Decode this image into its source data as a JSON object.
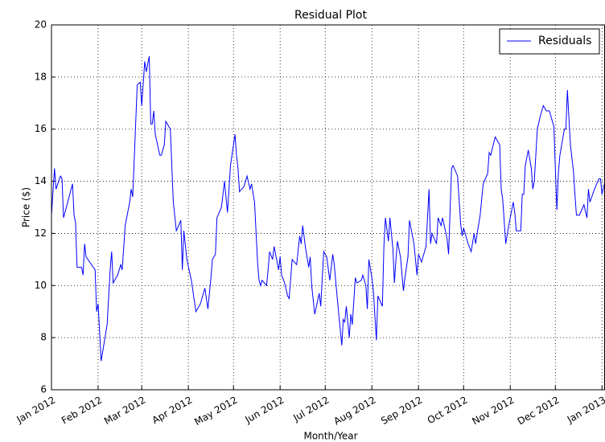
{
  "chart_data": {
    "type": "line",
    "title": "Residual Plot",
    "x_label": "Month/Year",
    "y_label": "Price ($)",
    "x": [
      0,
      2,
      3,
      6,
      7,
      8,
      14,
      15,
      16,
      17,
      20,
      21,
      22,
      23,
      29,
      30,
      31,
      33,
      35,
      37,
      39,
      40,
      41,
      44,
      46,
      47,
      49,
      52,
      53,
      54,
      57,
      59,
      60,
      62,
      63,
      65,
      66,
      67,
      68,
      69,
      72,
      73,
      75,
      76,
      79,
      80,
      81,
      83,
      86,
      87,
      88,
      90,
      93,
      96,
      99,
      102,
      104,
      106,
      107,
      109,
      110,
      113,
      115,
      117,
      119,
      122,
      123,
      124,
      125,
      128,
      130,
      132,
      133,
      135,
      137,
      138,
      139,
      140,
      143,
      144,
      145,
      147,
      148,
      151,
      152,
      153,
      155,
      157,
      158,
      160,
      163,
      165,
      166,
      167,
      169,
      171,
      172,
      173,
      175,
      178,
      179,
      181,
      183,
      185,
      187,
      188,
      190,
      193,
      194,
      195,
      196,
      198,
      199,
      200,
      202,
      203,
      206,
      207,
      209,
      210,
      211,
      213,
      214,
      216,
      217,
      220,
      221,
      222,
      224,
      225,
      227,
      228,
      229,
      230,
      232,
      234,
      235,
      237,
      238,
      241,
      243,
      244,
      246,
      249,
      251,
      252,
      253,
      256,
      257,
      259,
      260,
      263,
      264,
      266,
      267,
      270,
      272,
      273,
      274,
      277,
      279,
      281,
      282,
      283,
      285,
      287,
      290,
      291,
      292,
      295,
      298,
      299,
      300,
      302,
      304,
      307,
      308,
      309,
      312,
      313,
      314,
      315,
      317,
      319,
      320,
      321,
      323,
      325,
      327,
      329,
      331,
      334,
      335,
      336,
      337,
      338,
      341,
      342,
      343,
      345,
      347,
      348,
      349,
      351,
      354,
      356,
      357,
      358,
      361,
      364,
      365,
      366,
      368
    ],
    "series": [
      {
        "name": "Residuals",
        "color": "#0000ff",
        "values": [
          12.7,
          14.5,
          13.7,
          14.2,
          14.1,
          12.6,
          13.9,
          12.7,
          12.4,
          10.7,
          10.7,
          10.4,
          11.6,
          11.1,
          10.6,
          9.0,
          9.3,
          7.1,
          7.8,
          8.5,
          10.6,
          11.3,
          10.1,
          10.4,
          10.8,
          10.6,
          12.3,
          13.2,
          13.7,
          13.4,
          17.7,
          17.8,
          16.9,
          18.6,
          18.2,
          18.8,
          16.2,
          16.2,
          16.7,
          15.8,
          15.0,
          15.0,
          15.4,
          16.3,
          16.0,
          14.6,
          13.2,
          12.1,
          12.5,
          10.6,
          12.1,
          11.0,
          10.2,
          9.0,
          9.3,
          9.9,
          9.1,
          10.3,
          11.0,
          11.2,
          12.6,
          13.0,
          14.0,
          12.8,
          14.6,
          15.8,
          15.0,
          14.5,
          13.6,
          13.8,
          14.2,
          13.7,
          13.9,
          13.2,
          10.9,
          10.2,
          10.0,
          10.2,
          10.0,
          10.6,
          11.3,
          11.0,
          11.5,
          10.6,
          11.1,
          10.4,
          10.1,
          9.6,
          9.5,
          11.0,
          10.8,
          11.9,
          11.6,
          12.3,
          11.4,
          10.7,
          11.1,
          10.0,
          8.9,
          9.7,
          9.2,
          11.3,
          11.1,
          10.2,
          11.2,
          10.8,
          9.5,
          7.7,
          8.7,
          8.6,
          9.2,
          8.0,
          8.9,
          8.5,
          10.3,
          10.1,
          10.2,
          10.4,
          10.0,
          9.1,
          11.0,
          10.3,
          9.8,
          7.9,
          9.6,
          9.2,
          11.5,
          12.6,
          11.7,
          12.6,
          11.4,
          10.1,
          11.0,
          11.7,
          11.1,
          9.8,
          10.3,
          11.1,
          12.5,
          11.6,
          10.4,
          11.2,
          10.9,
          11.5,
          13.7,
          11.6,
          12.0,
          11.6,
          12.6,
          12.3,
          12.6,
          11.8,
          11.2,
          14.5,
          14.6,
          14.2,
          12.4,
          11.9,
          12.2,
          11.6,
          11.3,
          12.0,
          11.6,
          12.0,
          12.7,
          13.9,
          14.3,
          15.1,
          15.0,
          15.7,
          15.4,
          13.7,
          13.3,
          11.6,
          12.3,
          13.2,
          12.8,
          12.1,
          12.1,
          13.5,
          13.5,
          14.6,
          15.2,
          14.5,
          13.7,
          14.0,
          16.0,
          16.5,
          16.9,
          16.7,
          16.7,
          16.1,
          14.5,
          12.9,
          14.3,
          15.0,
          16.0,
          16.0,
          17.5,
          15.4,
          14.4,
          13.5,
          12.7,
          12.7,
          13.1,
          12.6,
          13.7,
          13.2,
          13.7,
          14.1,
          14.1,
          13.5,
          14.0
        ]
      }
    ],
    "xlim": [
      0,
      368
    ],
    "xticks": [
      {
        "value": 0,
        "label": "Jan 2012"
      },
      {
        "value": 31,
        "label": "Feb 2012"
      },
      {
        "value": 60,
        "label": "Mar 2012"
      },
      {
        "value": 91,
        "label": "Apr 2012"
      },
      {
        "value": 121,
        "label": "May 2012"
      },
      {
        "value": 152,
        "label": "Jun 2012"
      },
      {
        "value": 182,
        "label": "Jul 2012"
      },
      {
        "value": 213,
        "label": "Aug 2012"
      },
      {
        "value": 244,
        "label": "Sep 2012"
      },
      {
        "value": 274,
        "label": "Oct 2012"
      },
      {
        "value": 305,
        "label": "Nov 2012"
      },
      {
        "value": 335,
        "label": "Dec 2012"
      },
      {
        "value": 366,
        "label": "Jan 2013"
      }
    ],
    "ylim": [
      6,
      20
    ],
    "yticks": [
      6,
      8,
      10,
      12,
      14,
      16,
      18,
      20
    ],
    "grid": true,
    "legend": "upper right"
  }
}
